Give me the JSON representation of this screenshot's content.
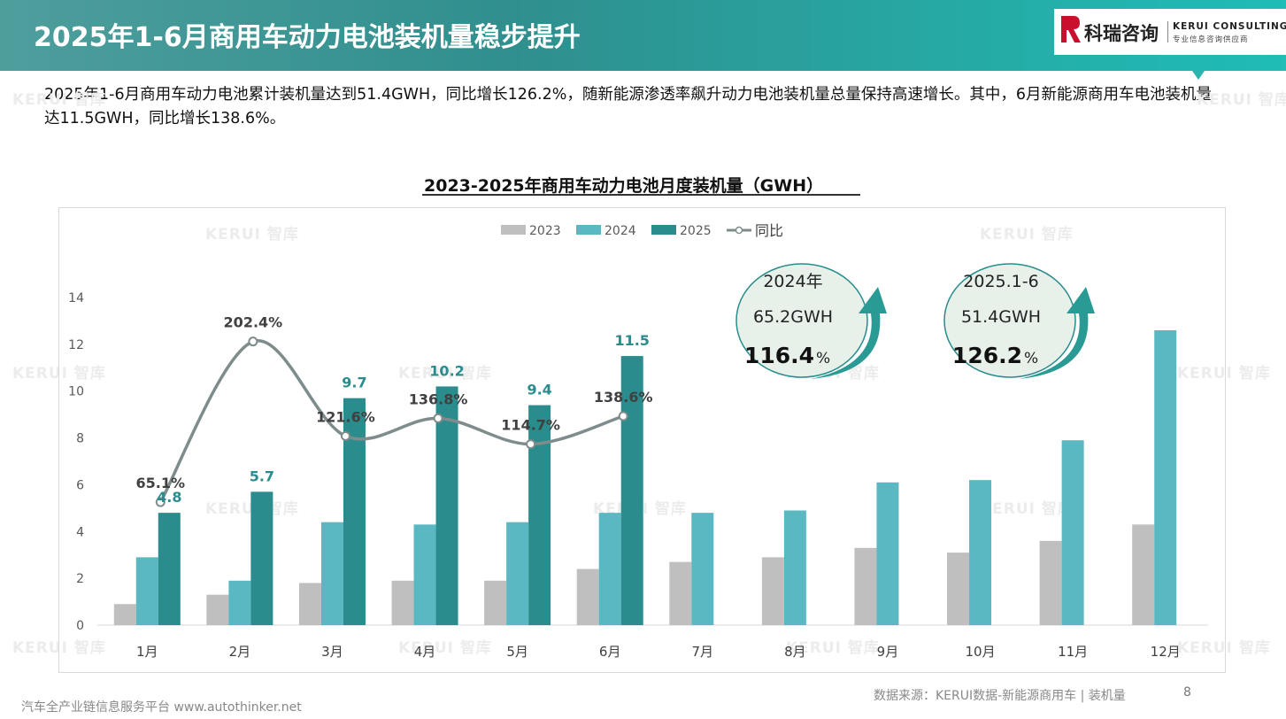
{
  "header": {
    "title": "2025年1-6月商用车动力电池装机量稳步提升",
    "logo_cn": "科瑞咨询",
    "logo_en": "KERUI CONSULTING",
    "logo_sub": "专业信息咨询供应商"
  },
  "summary": "2025年1-6月商用车动力电池累计装机量达到51.4GWH，同比增长126.2%，随新能源渗透率飙升动力电池装机量总量保持高速增长。其中，6月新能源商用车电池装机量达11.5GWH，同比增长138.6%。",
  "watermark": {
    "text": "KERUI 智库"
  },
  "chart_data": {
    "type": "bar",
    "title": "2023-2025年商用车动力电池月度装机量（GWH）",
    "categories": [
      "1月",
      "2月",
      "3月",
      "4月",
      "5月",
      "6月",
      "7月",
      "8月",
      "9月",
      "10月",
      "11月",
      "12月"
    ],
    "ylim": [
      0,
      14
    ],
    "yticks": [
      "0",
      "2",
      "4",
      "6",
      "8",
      "10",
      "12",
      "14"
    ],
    "legend_position": "top",
    "series": [
      {
        "name": "2023",
        "color": "#bfbfbf",
        "values": [
          0.9,
          1.3,
          1.8,
          1.9,
          1.9,
          2.4,
          2.7,
          2.9,
          3.3,
          3.1,
          3.6,
          4.3
        ]
      },
      {
        "name": "2024",
        "color": "#5ab8c2",
        "values": [
          2.9,
          1.9,
          4.4,
          4.3,
          4.4,
          4.8,
          4.8,
          4.9,
          6.1,
          6.2,
          7.9,
          12.6
        ]
      },
      {
        "name": "2025",
        "color": "#2a8c8c",
        "values": [
          4.8,
          5.7,
          9.7,
          10.2,
          9.4,
          11.5,
          null,
          null,
          null,
          null,
          null,
          null
        ],
        "labels": [
          "4.8",
          "5.7",
          "9.7",
          "10.2",
          "9.4",
          "11.5"
        ]
      }
    ],
    "yoy": {
      "name": "同比",
      "color": "#7f8c8c",
      "values": [
        65.1,
        202.4,
        121.6,
        136.8,
        114.7,
        138.6
      ],
      "labels": [
        "65.1%",
        "202.4%",
        "121.6%",
        "136.8%",
        "114.7%",
        "138.6%"
      ]
    },
    "callouts": [
      {
        "line1": "2024年",
        "line2": "65.2GWH",
        "big": "116.4",
        "unit": "%"
      },
      {
        "line1": "2025.1-6",
        "line2": "51.4GWH",
        "big": "126.2",
        "unit": "%"
      }
    ]
  },
  "footer": {
    "platform": "汽车全产业链信息服务平台 www.autothinker.net",
    "source": "数据来源：KERUI数据-新能源商用车 | 装机量",
    "page": "8"
  }
}
